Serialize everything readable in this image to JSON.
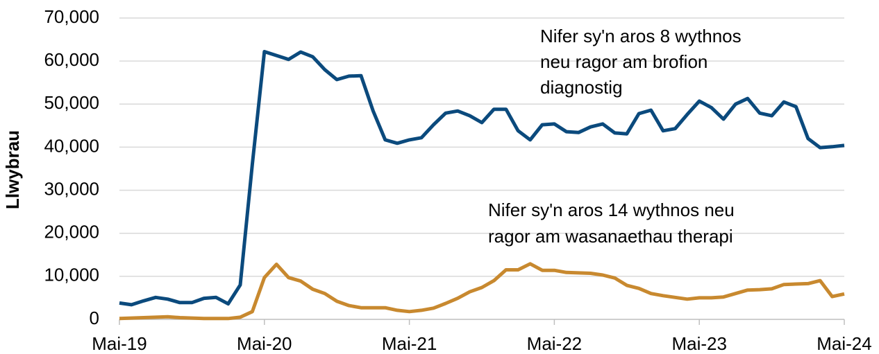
{
  "chart_data": {
    "type": "line",
    "y_label": "Llwybrau",
    "categories": [
      "Mai-19",
      null,
      null,
      null,
      null,
      null,
      null,
      null,
      null,
      null,
      null,
      null,
      "Mai-20",
      null,
      null,
      null,
      null,
      null,
      null,
      null,
      null,
      null,
      null,
      null,
      "Mai-21",
      null,
      null,
      null,
      null,
      null,
      null,
      null,
      null,
      null,
      null,
      null,
      "Mai-22",
      null,
      null,
      null,
      null,
      null,
      null,
      null,
      null,
      null,
      null,
      null,
      "Mai-23",
      null,
      null,
      null,
      null,
      null,
      null,
      null,
      null,
      null,
      null,
      null,
      "Mai-24"
    ],
    "series": [
      {
        "name": "Nifer sy'n aros 8 wythnos neu ragor am brofion diagnostig",
        "color": "#0b4a7d",
        "values": [
          3800,
          3400,
          4300,
          5100,
          4700,
          3900,
          3900,
          4900,
          5100,
          3600,
          8000,
          36000,
          62200,
          61300,
          60400,
          62100,
          61000,
          58000,
          55700,
          56500,
          56600,
          48400,
          41700,
          40900,
          41700,
          42200,
          45200,
          47900,
          48400,
          47300,
          45700,
          48800,
          48800,
          43800,
          41700,
          45200,
          45400,
          43600,
          43400,
          44700,
          45400,
          43300,
          43100,
          47800,
          48600,
          43800,
          44300,
          47600,
          50700,
          49200,
          46500,
          50000,
          51300,
          47900,
          47300,
          50500,
          49400,
          42000,
          39900,
          40100,
          40400
        ]
      },
      {
        "name": "Nifer sy'n aros 14 wythnos neu ragor am wasanaethau therapi",
        "color": "#c8892f",
        "values": [
          200,
          300,
          400,
          500,
          600,
          400,
          300,
          200,
          200,
          200,
          500,
          1800,
          9700,
          12800,
          9700,
          8900,
          7000,
          6000,
          4200,
          3200,
          2700,
          2700,
          2700,
          2100,
          1800,
          2100,
          2600,
          3700,
          4900,
          6400,
          7400,
          9000,
          11500,
          11500,
          12900,
          11400,
          11400,
          10900,
          10800,
          10700,
          10300,
          9600,
          7900,
          7200,
          6000,
          5500,
          5100,
          4700,
          5000,
          5000,
          5200,
          6000,
          6800,
          6900,
          7100,
          8100,
          8200,
          8300,
          9000,
          5300,
          5900
        ]
      }
    ],
    "annotations": [
      {
        "lines": [
          "Nifer sy'n aros 8 wythnos",
          "neu ragor am brofion",
          "diagnostig"
        ]
      },
      {
        "lines": [
          "Nifer sy'n aros 14 wythnos neu",
          "ragor am wasanaethau therapi"
        ]
      }
    ],
    "ylim": [
      0,
      70000
    ],
    "yticks": [
      0,
      {
        "value": 10000,
        "label": "10,000"
      },
      {
        "value": 20000,
        "label": "20,000"
      },
      {
        "value": 30000,
        "label": "30,000"
      },
      {
        "value": 40000,
        "label": "40,000"
      },
      {
        "value": 50000,
        "label": "50,000"
      },
      {
        "value": 60000,
        "label": "60,000"
      },
      {
        "value": 70000,
        "label": "70,000"
      }
    ],
    "grid": true
  }
}
